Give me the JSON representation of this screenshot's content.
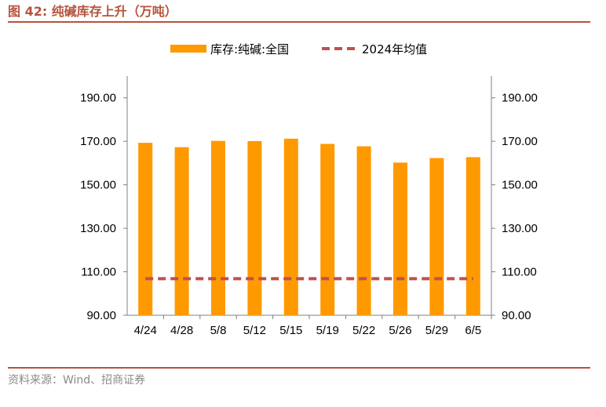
{
  "figure": {
    "title": "图 42:  纯碱库存上升（万吨）",
    "source": "资料来源：Wind、招商证券"
  },
  "colors": {
    "bar": "#ff9900",
    "avg_line": "#c0504d",
    "accent": "#b5533c",
    "axis": "#808080"
  },
  "chart_data": {
    "type": "bar",
    "title": "纯碱库存上升（万吨）",
    "categories": [
      "4/24",
      "4/28",
      "5/8",
      "5/12",
      "5/15",
      "5/19",
      "5/22",
      "5/26",
      "5/29",
      "6/5"
    ],
    "series": [
      {
        "name": "库存:纯碱:全国",
        "type": "bar",
        "values": [
          169.3,
          167.3,
          170.2,
          170.1,
          171.2,
          168.8,
          167.7,
          160.2,
          162.3,
          162.7
        ]
      },
      {
        "name": "2024年均值",
        "type": "line",
        "style": "dashed",
        "values": [
          106.8,
          106.8,
          106.8,
          106.8,
          106.8,
          106.8,
          106.8,
          106.8,
          106.8,
          106.8
        ]
      }
    ],
    "ylim": [
      90,
      200
    ],
    "yticks": [
      "90.00",
      "110.00",
      "130.00",
      "150.00",
      "170.00",
      "190.00"
    ],
    "y2ticks": [
      "90.00",
      "110.00",
      "130.00",
      "150.00",
      "170.00",
      "190.00"
    ],
    "legend_position": "top-center",
    "grid": false
  }
}
